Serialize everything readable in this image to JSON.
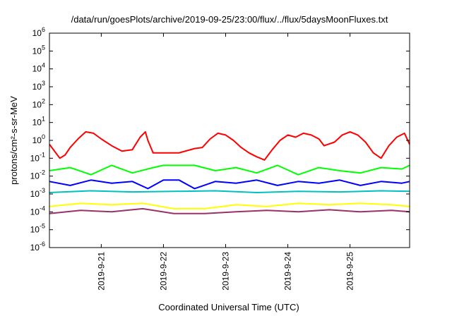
{
  "chart_data": {
    "type": "line",
    "title": "/data/run/goesPlots/archive/2019-09-25/23:00/flux/../flux/5daysMoonFluxes.txt",
    "xlabel": "Coordinated Universal Time (UTC)",
    "ylabel": "protons/cm²-s-sr-MeV",
    "y_scale": "log",
    "ylim": [
      1e-06,
      1000000.0
    ],
    "xlim": [
      "2019-09-20 04:00",
      "2019-09-25 23:00"
    ],
    "x_ticks": [
      "2019-9-21",
      "2019-9-22",
      "2019-9-23",
      "2019-9-24",
      "2019-9-25"
    ],
    "y_ticks": [
      {
        "base": "10",
        "exp": "-6"
      },
      {
        "base": "10",
        "exp": "-5"
      },
      {
        "base": "10",
        "exp": "-4"
      },
      {
        "base": "10",
        "exp": "-3"
      },
      {
        "base": "10",
        "exp": "-2"
      },
      {
        "base": "10",
        "exp": "-1"
      },
      {
        "base": "10",
        "exp": "0"
      },
      {
        "base": "10",
        "exp": "1"
      },
      {
        "base": "10",
        "exp": "2"
      },
      {
        "base": "10",
        "exp": "3"
      },
      {
        "base": "10",
        "exp": "4"
      },
      {
        "base": "10",
        "exp": "5"
      },
      {
        "base": "10",
        "exp": "6"
      }
    ],
    "grid": false,
    "series": [
      {
        "color": "#ff0000",
        "x": [
          "2019-09-20 04:00",
          "2019-09-20 08:00",
          "2019-09-20 10:00",
          "2019-09-20 12:00",
          "2019-09-20 15:00",
          "2019-09-20 18:00",
          "2019-09-20 21:00",
          "2019-09-21 00:00",
          "2019-09-21 04:00",
          "2019-09-21 08:00",
          "2019-09-21 12:00",
          "2019-09-21 15:00",
          "2019-09-21 17:00",
          "2019-09-21 18:00",
          "2019-09-21 20:00",
          "2019-09-22 00:00",
          "2019-09-22 06:00",
          "2019-09-22 12:00",
          "2019-09-22 15:00",
          "2019-09-22 18:00",
          "2019-09-22 21:00",
          "2019-09-23 00:00",
          "2019-09-23 03:00",
          "2019-09-23 06:00",
          "2019-09-23 09:00",
          "2019-09-23 12:00",
          "2019-09-23 15:00",
          "2019-09-23 18:00",
          "2019-09-23 21:00",
          "2019-09-24 00:00",
          "2019-09-24 03:00",
          "2019-09-24 06:00",
          "2019-09-24 09:00",
          "2019-09-24 12:00",
          "2019-09-24 14:00",
          "2019-09-24 18:00",
          "2019-09-24 21:00",
          "2019-09-25 00:00",
          "2019-09-25 03:00",
          "2019-09-25 06:00",
          "2019-09-25 09:00",
          "2019-09-25 12:00",
          "2019-09-25 15:00",
          "2019-09-25 18:00",
          "2019-09-25 21:00",
          "2019-09-25 23:00"
        ],
        "y": [
          0.6,
          0.1,
          0.15,
          0.4,
          1.2,
          3,
          2.5,
          1.2,
          0.5,
          0.25,
          0.3,
          1.5,
          3,
          1.0,
          0.2,
          0.2,
          0.2,
          0.35,
          0.4,
          1.2,
          2.5,
          2.0,
          1.0,
          0.4,
          0.2,
          0.12,
          0.08,
          0.3,
          1.0,
          2.0,
          1.5,
          2.5,
          2.0,
          1.2,
          0.5,
          0.8,
          2.0,
          3.0,
          2.0,
          0.8,
          0.2,
          0.1,
          0.5,
          1.5,
          2.5,
          0.6
        ]
      },
      {
        "color": "#00ff00",
        "x": [
          "2019-09-20 04:00",
          "2019-09-20 12:00",
          "2019-09-20 20:00",
          "2019-09-21 04:00",
          "2019-09-21 12:00",
          "2019-09-21 20:00",
          "2019-09-22 00:00",
          "2019-09-22 06:00",
          "2019-09-22 12:00",
          "2019-09-22 20:00",
          "2019-09-23 04:00",
          "2019-09-23 12:00",
          "2019-09-23 20:00",
          "2019-09-24 04:00",
          "2019-09-24 12:00",
          "2019-09-24 20:00",
          "2019-09-25 04:00",
          "2019-09-25 12:00",
          "2019-09-25 20:00",
          "2019-09-25 23:00"
        ],
        "y": [
          0.02,
          0.03,
          0.012,
          0.04,
          0.015,
          0.03,
          0.04,
          0.04,
          0.04,
          0.02,
          0.03,
          0.015,
          0.04,
          0.012,
          0.03,
          0.02,
          0.015,
          0.03,
          0.025,
          0.04
        ]
      },
      {
        "color": "#0000ff",
        "x": [
          "2019-09-20 04:00",
          "2019-09-20 12:00",
          "2019-09-20 20:00",
          "2019-09-21 04:00",
          "2019-09-21 12:00",
          "2019-09-21 18:00",
          "2019-09-22 00:00",
          "2019-09-22 06:00",
          "2019-09-22 12:00",
          "2019-09-22 20:00",
          "2019-09-23 04:00",
          "2019-09-23 12:00",
          "2019-09-23 20:00",
          "2019-09-24 04:00",
          "2019-09-24 12:00",
          "2019-09-24 20:00",
          "2019-09-25 04:00",
          "2019-09-25 12:00",
          "2019-09-25 20:00",
          "2019-09-25 23:00"
        ],
        "y": [
          0.005,
          0.003,
          0.006,
          0.004,
          0.005,
          0.002,
          0.006,
          0.006,
          0.002,
          0.005,
          0.004,
          0.006,
          0.003,
          0.005,
          0.004,
          0.006,
          0.003,
          0.005,
          0.004,
          0.005
        ]
      },
      {
        "color": "#00c0c0",
        "x": [
          "2019-09-20 04:00",
          "2019-09-20 20:00",
          "2019-09-21 12:00",
          "2019-09-22 04:00",
          "2019-09-22 20:00",
          "2019-09-23 12:00",
          "2019-09-24 04:00",
          "2019-09-24 20:00",
          "2019-09-25 12:00",
          "2019-09-25 23:00"
        ],
        "y": [
          0.0012,
          0.0015,
          0.0013,
          0.0014,
          0.0015,
          0.0012,
          0.0014,
          0.0013,
          0.0015,
          0.0014
        ]
      },
      {
        "color": "#ffff00",
        "x": [
          "2019-09-20 04:00",
          "2019-09-20 16:00",
          "2019-09-21 04:00",
          "2019-09-21 16:00",
          "2019-09-22 04:00",
          "2019-09-22 16:00",
          "2019-09-23 04:00",
          "2019-09-23 16:00",
          "2019-09-24 04:00",
          "2019-09-24 16:00",
          "2019-09-25 04:00",
          "2019-09-25 16:00",
          "2019-09-25 23:00"
        ],
        "y": [
          0.0002,
          0.0003,
          0.00025,
          0.0003,
          0.00015,
          0.00015,
          0.00025,
          0.0002,
          0.0003,
          0.00025,
          0.0003,
          0.00025,
          0.0002
        ]
      },
      {
        "color": "#993366",
        "x": [
          "2019-09-20 04:00",
          "2019-09-20 16:00",
          "2019-09-21 04:00",
          "2019-09-21 16:00",
          "2019-09-22 04:00",
          "2019-09-22 16:00",
          "2019-09-23 04:00",
          "2019-09-23 16:00",
          "2019-09-24 04:00",
          "2019-09-24 16:00",
          "2019-09-25 04:00",
          "2019-09-25 16:00",
          "2019-09-25 23:00"
        ],
        "y": [
          8e-05,
          0.00012,
          0.0001,
          0.00015,
          8e-05,
          8e-05,
          0.0001,
          0.00012,
          0.0001,
          0.00013,
          0.0001,
          0.00012,
          0.0001
        ]
      }
    ]
  }
}
